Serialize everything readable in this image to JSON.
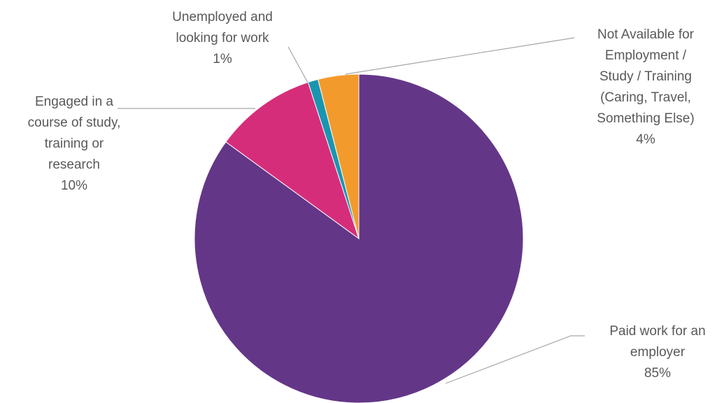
{
  "chart_data": {
    "type": "pie",
    "title": "",
    "start_angle_deg": 0,
    "direction": "clockwise",
    "slices": [
      {
        "label_lines": [
          "Paid work for an",
          "employer"
        ],
        "value": 85,
        "percent_label": "85%",
        "color": "#643688"
      },
      {
        "label_lines": [
          "Engaged in a",
          "course of study,",
          "training or",
          "research"
        ],
        "value": 10,
        "percent_label": "10%",
        "color": "#d62d7a"
      },
      {
        "label_lines": [
          "Unemployed and",
          "looking for work"
        ],
        "value": 1,
        "percent_label": "1%",
        "color": "#1a95b0"
      },
      {
        "label_lines": [
          "Not Available for",
          "Employment /",
          "Study / Training",
          "(Caring, Travel,",
          "Something Else)"
        ],
        "value": 4,
        "percent_label": "4%",
        "color": "#f39a2c"
      }
    ],
    "legend": "none",
    "data_labels": "outside-with-leader-lines"
  }
}
